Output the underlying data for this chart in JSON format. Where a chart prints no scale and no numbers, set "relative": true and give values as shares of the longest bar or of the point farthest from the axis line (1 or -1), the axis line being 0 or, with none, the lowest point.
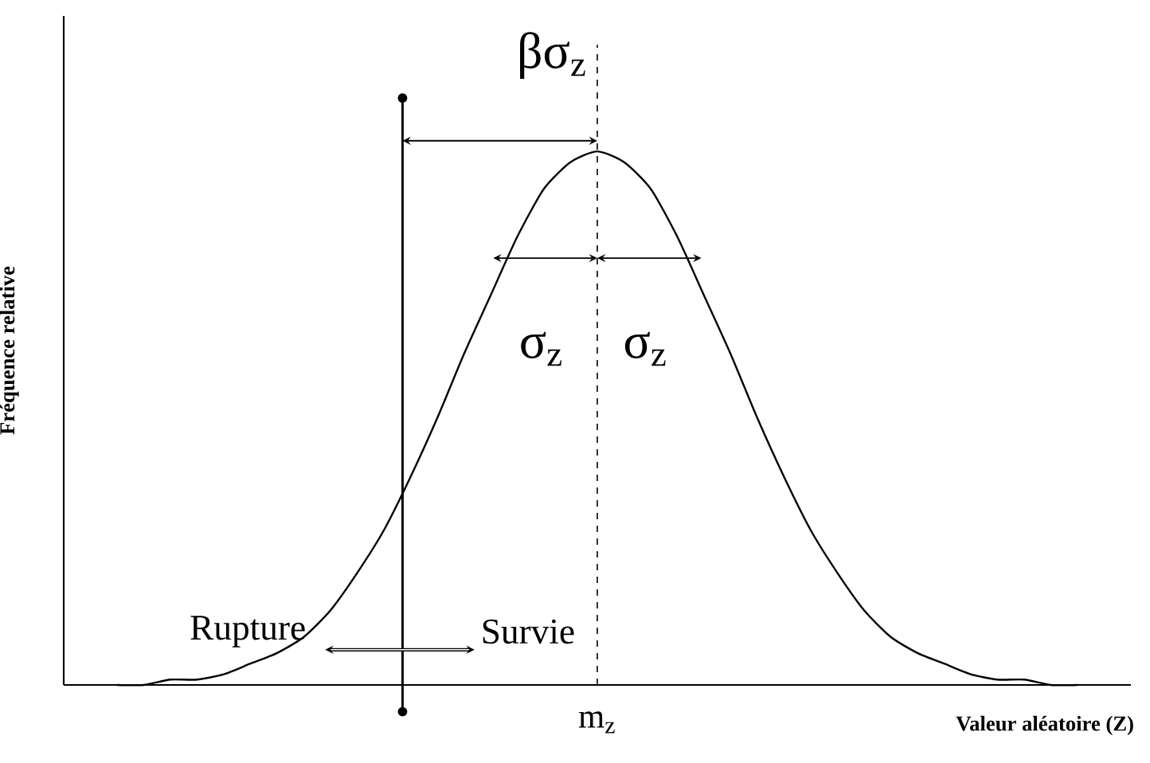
{
  "chart_data": {
    "type": "line",
    "relative": true,
    "xlabel": "Valeur aléatoire (Z)",
    "ylabel": "Fréquence relative",
    "categories": [
      null,
      null,
      null,
      null,
      null,
      null,
      null,
      null,
      null,
      null,
      null,
      null,
      null,
      null,
      null,
      null,
      null,
      null,
      null,
      null,
      null,
      null,
      null,
      null,
      null,
      null,
      null,
      null,
      null,
      null,
      null,
      null,
      null,
      null,
      null,
      null,
      null,
      null,
      null,
      null,
      null
    ],
    "series": [
      {
        "color": "#000000",
        "line_style": "solid",
        "values": [
          null,
          null,
          0,
          0,
          0.01,
          0.01,
          0.02,
          0.04,
          0.06,
          0.09,
          0.14,
          0.21,
          0.29,
          0.39,
          0.5,
          0.62,
          0.73,
          0.84,
          0.93,
          0.98,
          1,
          0.98,
          0.93,
          0.84,
          0.73,
          0.62,
          0.5,
          0.39,
          0.29,
          0.21,
          0.14,
          0.09,
          0.06,
          0.04,
          0.02,
          0.01,
          0.01,
          0,
          0,
          null,
          null
        ]
      }
    ],
    "annotations": [
      "βσ$_{z}$",
      "σ$_{z}$",
      "σ$_{z}$",
      "Rupture",
      "Survie",
      "m$_{z}$"
    ]
  }
}
